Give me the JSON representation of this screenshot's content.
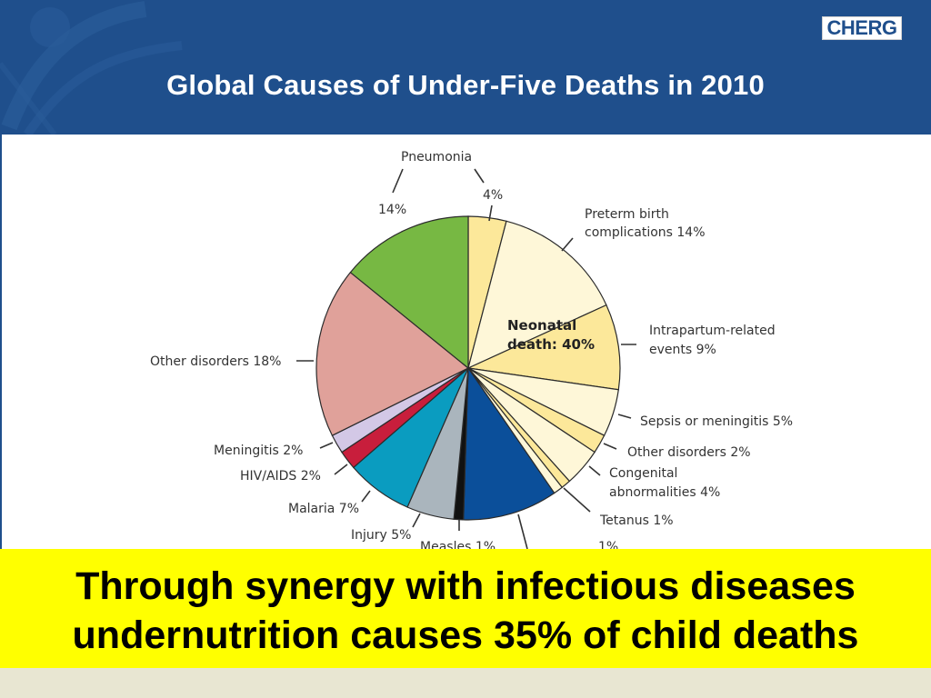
{
  "slide": {
    "title": "Global Causes of Under-Five Deaths in 2010",
    "logo_text": "CHERG",
    "colors": {
      "header_bg": "#1f4f8c",
      "callout_bg": "#ffff00",
      "footer_bg": "#e8e6d2"
    }
  },
  "callout": {
    "line1": "Through synergy with infectious diseases",
    "line2": "undernutrition causes 35% of child deaths"
  },
  "chart_data": {
    "type": "pie",
    "title": "",
    "center_label": [
      "Neonatal",
      "death: 40%"
    ],
    "slices": [
      {
        "label": "Pneumonia",
        "value": 4,
        "text": "4%",
        "color": "#fce89a",
        "group": "neonatal"
      },
      {
        "label": "Preterm birth complications",
        "value": 14,
        "text": "Preterm birth complications 14%",
        "color": "#fef7d8",
        "group": "neonatal"
      },
      {
        "label": "Intrapartum-related events",
        "value": 9,
        "text": "Intrapartum-related events 9%",
        "color": "#fce89a",
        "group": "neonatal"
      },
      {
        "label": "Sepsis or meningitis",
        "value": 5,
        "text": "Sepsis or meningitis 5%",
        "color": "#fef7d8",
        "group": "neonatal"
      },
      {
        "label": "Other disorders",
        "value": 2,
        "text": "Other disorders 2%",
        "color": "#fce89a",
        "group": "neonatal"
      },
      {
        "label": "Congenital abnormalities",
        "value": 4,
        "text": "Congenital abnormalities 4%",
        "color": "#fef7d8",
        "group": "neonatal"
      },
      {
        "label": "Tetanus",
        "value": 1,
        "text": "Tetanus 1%",
        "color": "#fce89a",
        "group": "neonatal"
      },
      {
        "label": "",
        "value": 1,
        "text": "1%",
        "color": "#fef7d8",
        "group": "neonatal"
      },
      {
        "label": "",
        "value": 10,
        "text": "",
        "color": "#0b4f9a",
        "group": "postneonatal"
      },
      {
        "label": "Measles",
        "value": 1,
        "text": "Measles 1%",
        "color": "#111111",
        "group": "postneonatal"
      },
      {
        "label": "Injury",
        "value": 5,
        "text": "Injury 5%",
        "color": "#aab5bd",
        "group": "postneonatal"
      },
      {
        "label": "Malaria",
        "value": 7,
        "text": "Malaria 7%",
        "color": "#0a9cc0",
        "group": "postneonatal"
      },
      {
        "label": "HIV/AIDS",
        "value": 2,
        "text": "HIV/AIDS 2%",
        "color": "#c81e3c",
        "group": "postneonatal"
      },
      {
        "label": "Meningitis",
        "value": 2,
        "text": "Meningitis 2%",
        "color": "#d3c8e6",
        "group": "postneonatal"
      },
      {
        "label": "Other disorders",
        "value": 18,
        "text": "Other disorders 18%",
        "color": "#e0a19a",
        "group": "postneonatal"
      },
      {
        "label": "Pneumonia",
        "value": 14,
        "text": "14%",
        "color": "#77b843",
        "group": "postneonatal"
      }
    ],
    "group_label": "Pneumonia",
    "legend": "none"
  }
}
